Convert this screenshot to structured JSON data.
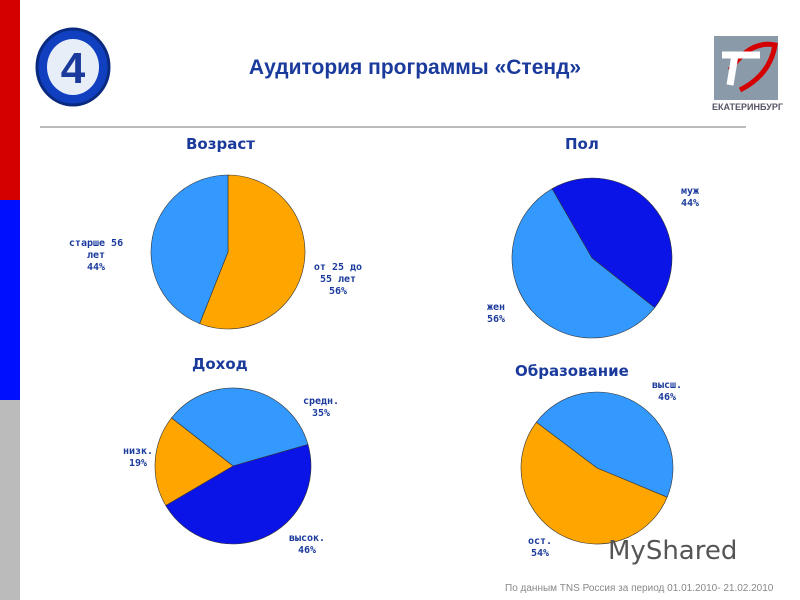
{
  "title": "Аудитория программы «Стенд»",
  "logo_right_text": "ЕКАТЕРИНБУРГ",
  "watermark": "MyShared",
  "source": "По данным TNS Россия за период 01.01.2010- 21.02.2010",
  "colors": {
    "orange": "#ffa500",
    "light_blue": "#3399ff",
    "dark_blue": "#0a14e6",
    "red": "#d40000",
    "blue": "#0010ff",
    "gray": "#bbbbbb",
    "title": "#1a3a9c"
  },
  "chart_data": [
    {
      "type": "pie",
      "title": "Возраст",
      "slices": [
        {
          "label": "от 25 до 55 лет",
          "value": 56,
          "pct": "56%",
          "color": "#ffa500"
        },
        {
          "label": "старше 56 лет",
          "value": 44,
          "pct": "44%",
          "color": "#3399ff"
        }
      ]
    },
    {
      "type": "pie",
      "title": "Пол",
      "slices": [
        {
          "label": "муж",
          "value": 44,
          "pct": "44%",
          "color": "#0a14e6"
        },
        {
          "label": "жен",
          "value": 56,
          "pct": "56%",
          "color": "#3399ff"
        }
      ]
    },
    {
      "type": "pie",
      "title": "Доход",
      "slices": [
        {
          "label": "средн.",
          "value": 35,
          "pct": "35%",
          "color": "#3399ff"
        },
        {
          "label": "высок.",
          "value": 46,
          "pct": "46%",
          "color": "#0a14e6"
        },
        {
          "label": "низк.",
          "value": 19,
          "pct": "19%",
          "color": "#ffa500"
        }
      ]
    },
    {
      "type": "pie",
      "title": "Образование",
      "slices": [
        {
          "label": "высш.",
          "value": 46,
          "pct": "46%",
          "color": "#3399ff"
        },
        {
          "label": "ост.",
          "value": 54,
          "pct": "54%",
          "color": "#ffa500"
        }
      ]
    }
  ]
}
